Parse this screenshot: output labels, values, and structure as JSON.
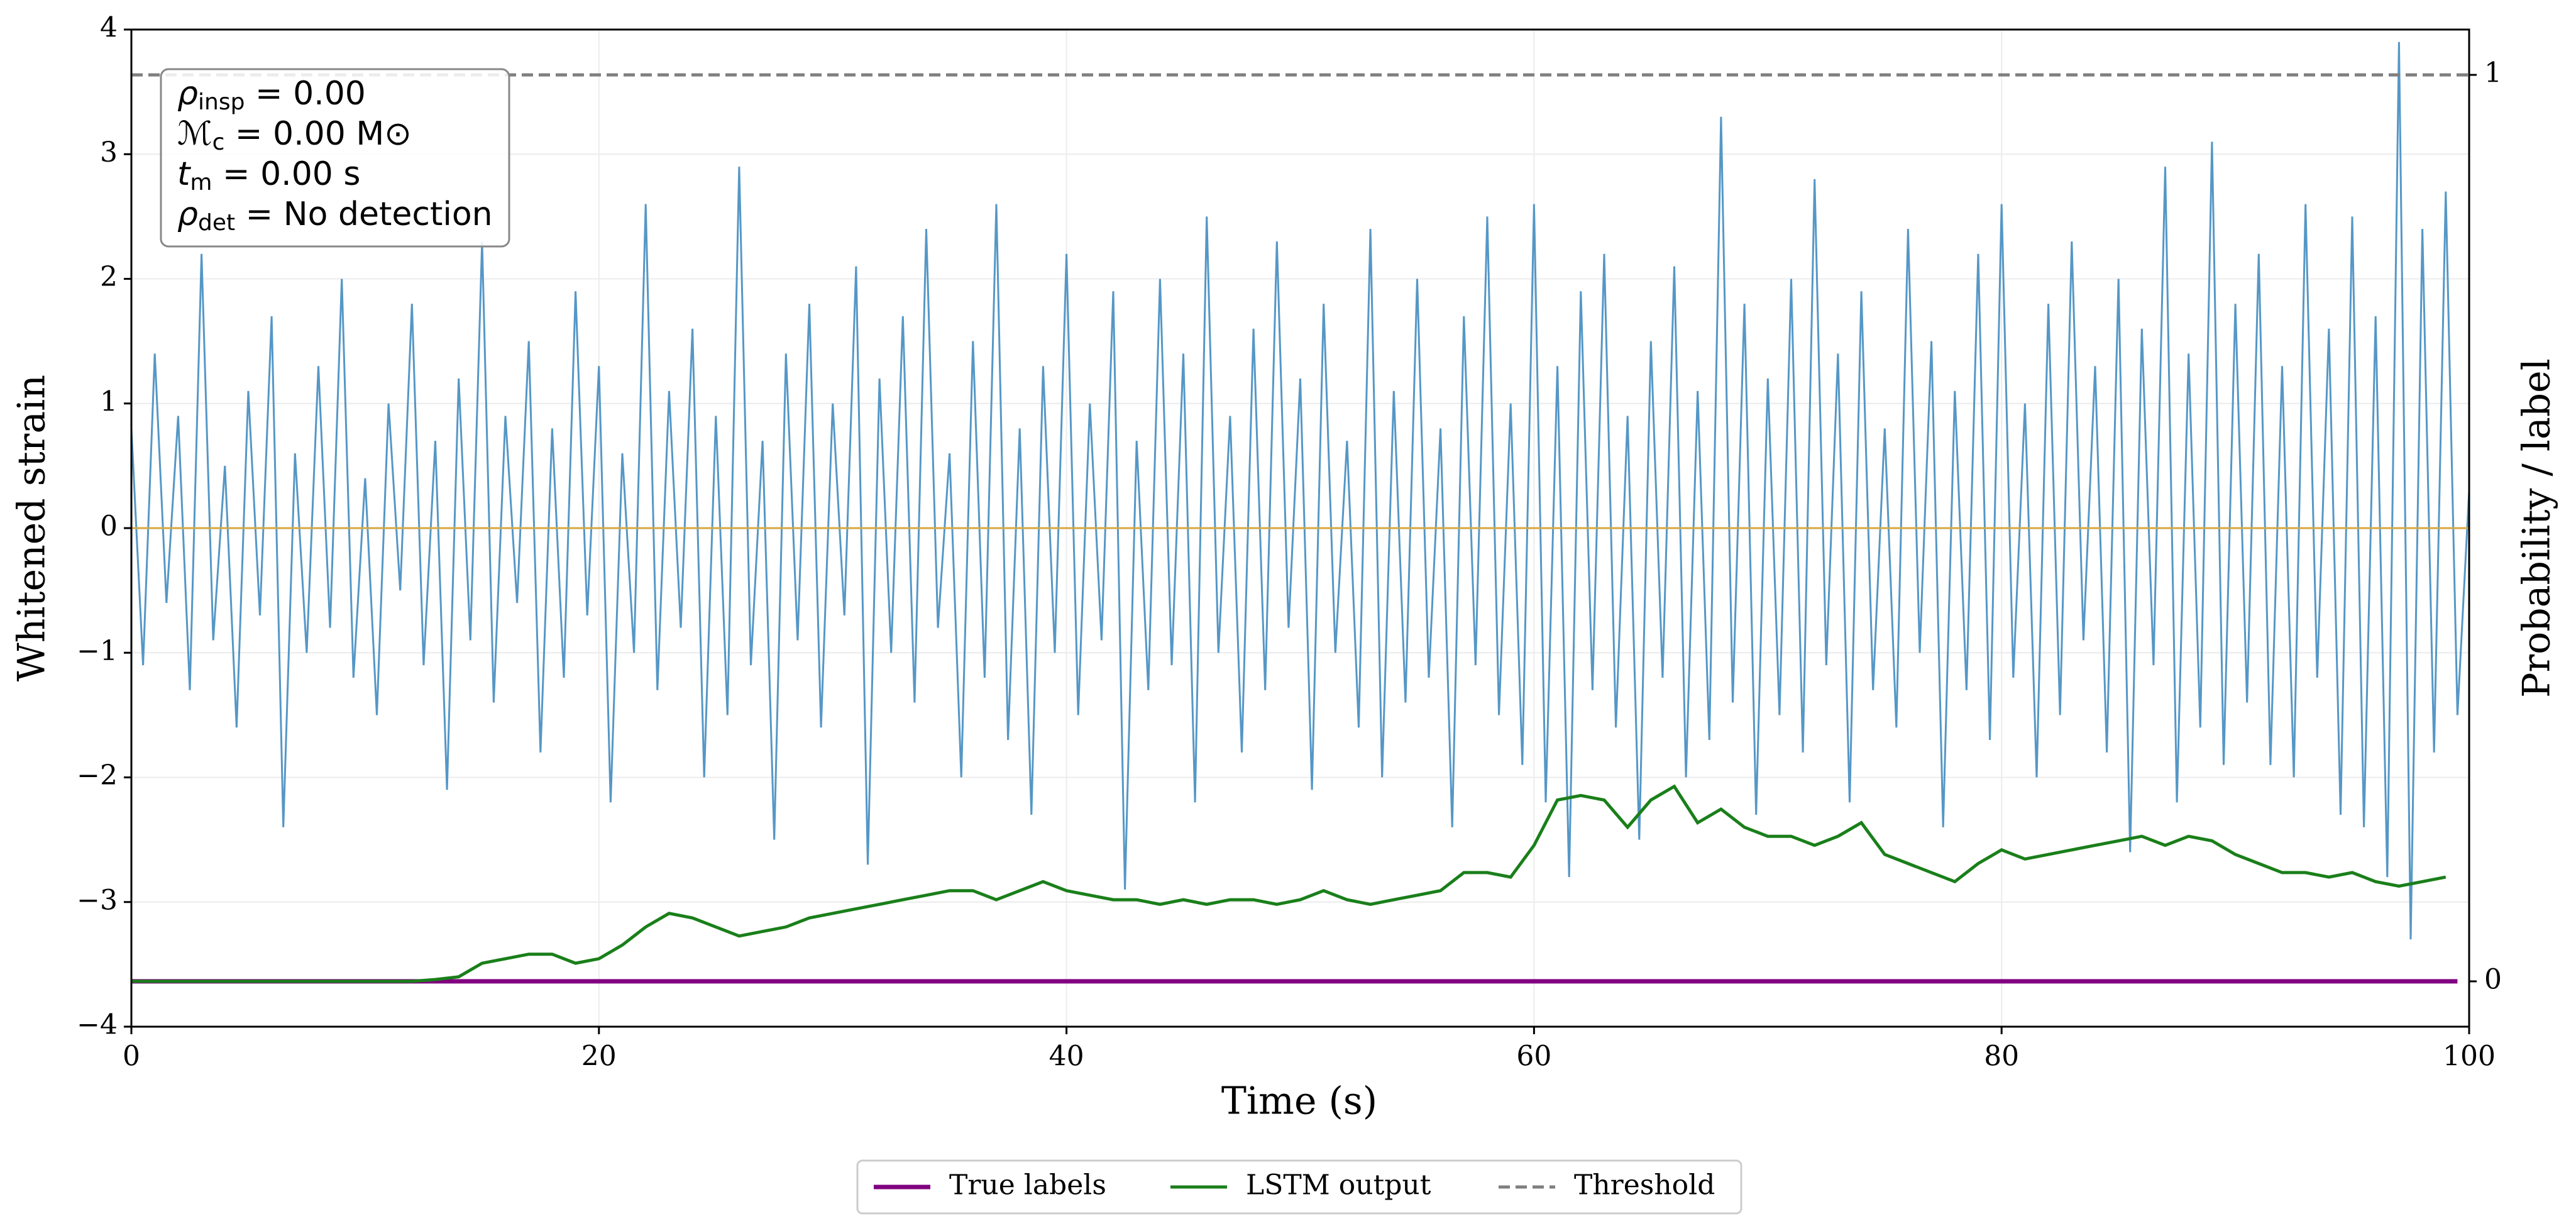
{
  "chart_data": {
    "type": "line",
    "xlabel": "Time (s)",
    "ylabel": "Whitened strain",
    "y2label": "Probability / label",
    "xlim": [
      0,
      100
    ],
    "xticks": [
      0,
      20,
      40,
      60,
      80,
      100
    ],
    "ylim": [
      -4,
      4
    ],
    "yticks": [
      {
        "value": -4,
        "label": "−4"
      },
      {
        "value": -3,
        "label": "−3"
      },
      {
        "value": -2,
        "label": "−2"
      },
      {
        "value": -1,
        "label": "−1"
      },
      0,
      1,
      2,
      3,
      4
    ],
    "y2lim": [
      -0.05,
      1.05
    ],
    "y2ticks": [
      0,
      1
    ],
    "grid": true,
    "legend": "bottom",
    "hline": {
      "value": 0,
      "color": "#d4a840"
    },
    "annotations": [
      {
        "main": "ρ",
        "sub": "insp",
        "rest": " = 0.00"
      },
      {
        "main": "ℳ",
        "sub": "c",
        "rest": " = 0.00 M⊙"
      },
      {
        "main": "t",
        "sub": "m",
        "rest": " = 0.00 s"
      },
      {
        "main": "ρ",
        "sub": "det",
        "rest": " = No detection"
      }
    ],
    "strain": {
      "color": "#5597c6",
      "x": [
        0,
        0.5,
        1,
        1.5,
        2,
        2.5,
        3,
        3.5,
        4,
        4.5,
        5,
        5.5,
        6,
        6.5,
        7,
        7.5,
        8,
        8.5,
        9,
        9.5,
        10,
        10.5,
        11,
        11.5,
        12,
        12.5,
        13,
        13.5,
        14,
        14.5,
        15,
        15.5,
        16,
        16.5,
        17,
        17.5,
        18,
        18.5,
        19,
        19.5,
        20,
        20.5,
        21,
        21.5,
        22,
        22.5,
        23,
        23.5,
        24,
        24.5,
        25,
        25.5,
        26,
        26.5,
        27,
        27.5,
        28,
        28.5,
        29,
        29.5,
        30,
        30.5,
        31,
        31.5,
        32,
        32.5,
        33,
        33.5,
        34,
        34.5,
        35,
        35.5,
        36,
        36.5,
        37,
        37.5,
        38,
        38.5,
        39,
        39.5,
        40,
        40.5,
        41,
        41.5,
        42,
        42.5,
        43,
        43.5,
        44,
        44.5,
        45,
        45.5,
        46,
        46.5,
        47,
        47.5,
        48,
        48.5,
        49,
        49.5,
        50,
        50.5,
        51,
        51.5,
        52,
        52.5,
        53,
        53.5,
        54,
        54.5,
        55,
        55.5,
        56,
        56.5,
        57,
        57.5,
        58,
        58.5,
        59,
        59.5,
        60,
        60.5,
        61,
        61.5,
        62,
        62.5,
        63,
        63.5,
        64,
        64.5,
        65,
        65.5,
        66,
        66.5,
        67,
        67.5,
        68,
        68.5,
        69,
        69.5,
        70,
        70.5,
        71,
        71.5,
        72,
        72.5,
        73,
        73.5,
        74,
        74.5,
        75,
        75.5,
        76,
        76.5,
        77,
        77.5,
        78,
        78.5,
        79,
        79.5,
        80,
        80.5,
        81,
        81.5,
        82,
        82.5,
        83,
        83.5,
        84,
        84.5,
        85,
        85.5,
        86,
        86.5,
        87,
        87.5,
        88,
        88.5,
        89,
        89.5,
        90,
        90.5,
        91,
        91.5,
        92,
        92.5,
        93,
        93.5,
        94,
        94.5,
        95,
        95.5,
        96,
        96.5,
        97,
        97.5,
        98,
        98.5,
        99,
        99.5,
        100
      ],
      "values": [
        0.8,
        -1.1,
        1.4,
        -0.6,
        0.9,
        -1.3,
        2.2,
        -0.9,
        0.5,
        -1.6,
        1.1,
        -0.7,
        1.7,
        -2.4,
        0.6,
        -1.0,
        1.3,
        -0.8,
        2.0,
        -1.2,
        0.4,
        -1.5,
        1.0,
        -0.5,
        1.8,
        -1.1,
        0.7,
        -2.1,
        1.2,
        -0.9,
        2.3,
        -1.4,
        0.9,
        -0.6,
        1.5,
        -1.8,
        0.8,
        -1.2,
        1.9,
        -0.7,
        1.3,
        -2.2,
        0.6,
        -1.0,
        2.6,
        -1.3,
        1.1,
        -0.8,
        1.6,
        -2.0,
        0.9,
        -1.5,
        2.9,
        -1.1,
        0.7,
        -2.5,
        1.4,
        -0.9,
        1.8,
        -1.6,
        1.0,
        -0.7,
        2.1,
        -2.7,
        1.2,
        -1.0,
        1.7,
        -1.4,
        2.4,
        -0.8,
        0.6,
        -2.0,
        1.5,
        -1.2,
        2.6,
        -1.7,
        0.8,
        -2.3,
        1.3,
        -1.0,
        2.2,
        -1.5,
        1.0,
        -0.9,
        1.9,
        -2.9,
        0.7,
        -1.3,
        2.0,
        -1.1,
        1.4,
        -2.2,
        2.5,
        -1.0,
        0.9,
        -1.8,
        1.6,
        -1.3,
        2.3,
        -0.8,
        1.2,
        -2.1,
        1.8,
        -1.0,
        0.7,
        -1.6,
        2.4,
        -2.0,
        1.1,
        -1.4,
        2.0,
        -1.2,
        0.8,
        -2.4,
        1.7,
        -1.1,
        2.5,
        -1.5,
        1.0,
        -1.9,
        2.6,
        -2.2,
        1.3,
        -2.8,
        1.9,
        -1.3,
        2.2,
        -1.6,
        0.9,
        -2.5,
        1.5,
        -1.2,
        2.1,
        -2.0,
        1.1,
        -1.7,
        3.3,
        -1.4,
        1.8,
        -2.3,
        1.2,
        -1.5,
        2.0,
        -1.8,
        2.8,
        -1.1,
        1.4,
        -2.2,
        1.9,
        -1.3,
        0.8,
        -1.6,
        2.4,
        -1.0,
        1.5,
        -2.4,
        1.1,
        -1.3,
        2.2,
        -1.7,
        2.6,
        -1.2,
        1.0,
        -2.0,
        1.8,
        -1.5,
        2.3,
        -0.9,
        1.3,
        -1.8,
        2.0,
        -2.6,
        1.6,
        -1.1,
        2.9,
        -2.2,
        1.4,
        -1.6,
        3.1,
        -1.9,
        1.8,
        -1.4,
        2.2,
        -1.9,
        1.3,
        -2.0,
        2.6,
        -1.2,
        1.6,
        -2.3,
        2.5,
        -2.4,
        1.7,
        -2.8,
        3.9,
        -3.3,
        2.4,
        -1.8,
        2.7,
        -1.5,
        0.3
      ]
    },
    "series": [
      {
        "name": "True labels",
        "color": "#800080",
        "axis": "y2",
        "x": [
          0,
          99.5
        ],
        "values": [
          0,
          0
        ]
      },
      {
        "name": "LSTM output",
        "color": "#1a7f1a",
        "axis": "y2",
        "x": [
          0,
          1,
          2,
          3,
          4,
          5,
          6,
          7,
          8,
          9,
          10,
          11,
          12,
          13,
          14,
          15,
          16,
          17,
          18,
          19,
          20,
          21,
          22,
          23,
          24,
          25,
          26,
          27,
          28,
          29,
          30,
          31,
          32,
          33,
          34,
          35,
          36,
          37,
          38,
          39,
          40,
          41,
          42,
          43,
          44,
          45,
          46,
          47,
          48,
          49,
          50,
          51,
          52,
          53,
          54,
          55,
          56,
          57,
          58,
          59,
          60,
          61,
          62,
          63,
          64,
          65,
          66,
          67,
          68,
          69,
          70,
          71,
          72,
          73,
          74,
          75,
          76,
          77,
          78,
          79,
          80,
          81,
          82,
          83,
          84,
          85,
          86,
          87,
          88,
          89,
          90,
          91,
          92,
          93,
          94,
          95,
          96,
          97,
          98,
          99
        ],
        "values": [
          0,
          0,
          0,
          0,
          0,
          0,
          0,
          0,
          0,
          0,
          0,
          0,
          0,
          0.002,
          0.005,
          0.02,
          0.025,
          0.03,
          0.03,
          0.02,
          0.025,
          0.04,
          0.06,
          0.075,
          0.07,
          0.06,
          0.05,
          0.055,
          0.06,
          0.07,
          0.075,
          0.08,
          0.085,
          0.09,
          0.095,
          0.1,
          0.1,
          0.09,
          0.1,
          0.11,
          0.1,
          0.095,
          0.09,
          0.09,
          0.085,
          0.09,
          0.085,
          0.09,
          0.09,
          0.085,
          0.09,
          0.1,
          0.09,
          0.085,
          0.09,
          0.095,
          0.1,
          0.12,
          0.12,
          0.115,
          0.15,
          0.2,
          0.205,
          0.2,
          0.17,
          0.2,
          0.215,
          0.175,
          0.19,
          0.17,
          0.16,
          0.16,
          0.15,
          0.16,
          0.175,
          0.14,
          0.13,
          0.12,
          0.11,
          0.13,
          0.145,
          0.135,
          0.14,
          0.145,
          0.15,
          0.155,
          0.16,
          0.15,
          0.16,
          0.155,
          0.14,
          0.13,
          0.12,
          0.12,
          0.115,
          0.12,
          0.11,
          0.105,
          0.11,
          0.115
        ]
      },
      {
        "name": "Threshold",
        "color": "#7f7f7f",
        "axis": "y2",
        "dash": true,
        "x": [
          0,
          100
        ],
        "values": [
          1,
          1
        ]
      }
    ]
  }
}
